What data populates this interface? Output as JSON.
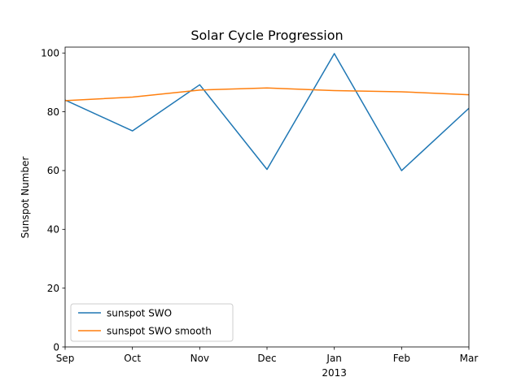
{
  "chart_data": {
    "type": "line",
    "title": "Solar Cycle Progression",
    "xlabel": "",
    "ylabel": "Sunspot Number",
    "x": [
      "2012-09",
      "2012-10",
      "2012-11",
      "2012-12",
      "2013-01",
      "2013-02",
      "2013-03"
    ],
    "x_tick_labels": [
      "Sep",
      "Oct",
      "Nov",
      "Dec",
      "Jan",
      "Feb",
      "Mar"
    ],
    "x_secondary_label": "2013",
    "ylim": [
      0,
      102
    ],
    "y_ticks": [
      0,
      20,
      40,
      60,
      80,
      100
    ],
    "grid": false,
    "legend_position": "lower-left",
    "series": [
      {
        "name": "sunspot SWO",
        "color": "#1f77b4",
        "values": [
          84.0,
          73.5,
          89.2,
          60.4,
          99.8,
          60.0,
          81.2
        ]
      },
      {
        "name": "sunspot SWO smooth",
        "color": "#ff7f0e",
        "values": [
          83.8,
          85.0,
          87.4,
          88.1,
          87.2,
          86.8,
          85.8
        ]
      }
    ]
  }
}
